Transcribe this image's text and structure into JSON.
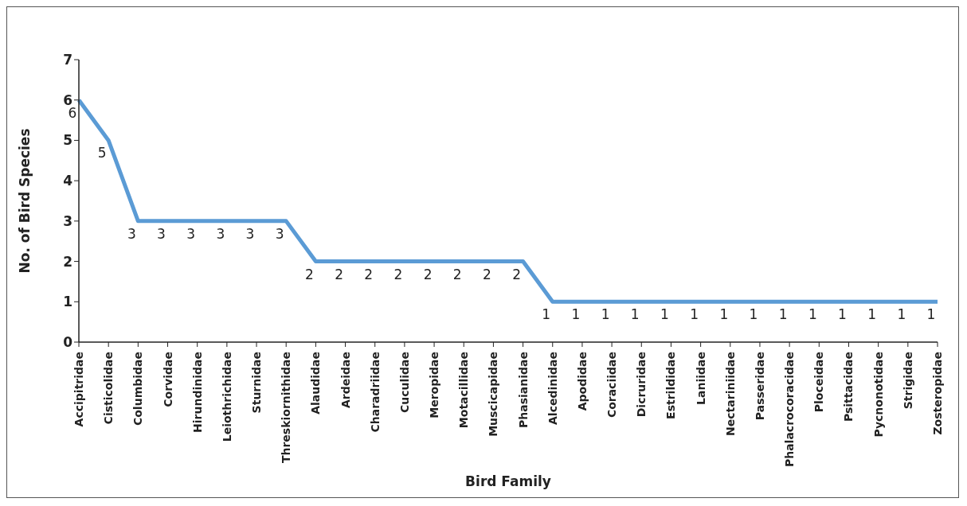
{
  "chart_data": {
    "type": "line",
    "xlabel": "Bird Family",
    "ylabel": "No. of Bird Species",
    "categories": [
      "Accipitridae",
      "Cisticolidae",
      "Columbidae",
      "Corvidae",
      "Hirundinidae",
      "Leiothrichidae",
      "Sturnidae",
      "Threskiornithidae",
      "Alaudidae",
      "Ardeidae",
      "Charadriidae",
      "Cuculidae",
      "Meropidae",
      "Motacillidae",
      "Muscicapidae",
      "Phasianidae",
      "Alcedinidae",
      "Apodidae",
      "Coraciidae",
      "Dicruridae",
      "Estrildidae",
      "Laniidae",
      "Nectariniidae",
      "Passeridae",
      "Phalacrocoracidae",
      "Ploceidae",
      "Psittacidae",
      "Pycnonotidae",
      "Strigidae",
      "Zosteropidae"
    ],
    "series": [
      {
        "color": "#5b9bd5",
        "values": [
          6,
          5,
          3,
          3,
          3,
          3,
          3,
          3,
          2,
          2,
          2,
          2,
          2,
          2,
          2,
          2,
          1,
          1,
          1,
          1,
          1,
          1,
          1,
          1,
          1,
          1,
          1,
          1,
          1,
          1
        ]
      }
    ],
    "ylim": [
      0,
      7
    ],
    "yticks": [
      0,
      1,
      2,
      3,
      4,
      5,
      6,
      7
    ],
    "marker": "none",
    "line_style": "solid",
    "data_labels": true
  }
}
